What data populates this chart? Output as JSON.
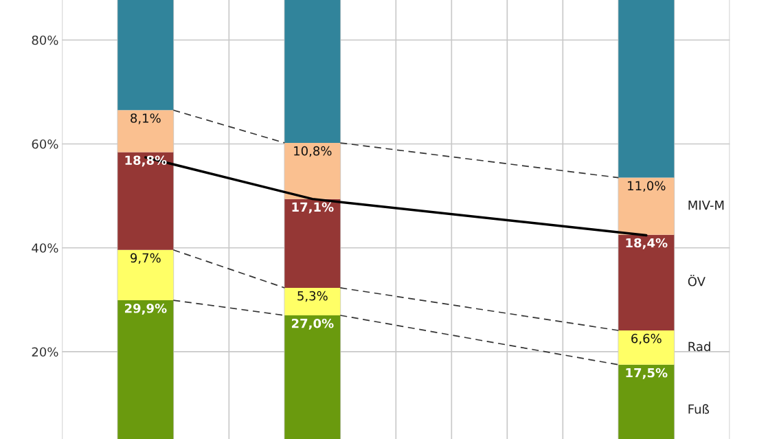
{
  "chart_data": {
    "type": "bar",
    "stacked": true,
    "categories": [
      null,
      null,
      null,
      null
    ],
    "series": [
      {
        "name": "Fuß",
        "color": "#6a9a0e",
        "values": [
          29.9,
          27.0,
          null,
          17.5
        ],
        "value_labels": [
          "29,9%",
          "27,0%",
          null,
          "17,5%"
        ],
        "line_style": "dashed"
      },
      {
        "name": "Rad",
        "color": "#ffff66",
        "values": [
          9.7,
          5.3,
          null,
          6.6
        ],
        "value_labels": [
          "9,7%",
          "5,3%",
          null,
          "6,6%"
        ],
        "line_style": "dashed"
      },
      {
        "name": "ÖV",
        "color": "#953735",
        "values": [
          18.8,
          17.1,
          null,
          18.4
        ],
        "value_labels": [
          "18,8%",
          "17,1%",
          null,
          "18,4%"
        ]
      },
      {
        "name": "MIV-M",
        "color": "#fac090",
        "values": [
          8.1,
          10.8,
          null,
          11.0
        ],
        "value_labels": [
          "8,1%",
          "10,8%",
          null,
          "11,0%"
        ],
        "line_style": "dashed"
      },
      {
        "color": "#31849b",
        "values": [
          21.2,
          27.5,
          null,
          34.2
        ]
      },
      {
        "type": "line",
        "color": "#000000",
        "values": [
          57.4,
          49.4,
          null,
          42.4
        ],
        "line_style": "solid"
      }
    ],
    "ylim": [
      3.2,
      87.7
    ],
    "yticks": [
      {
        "value": 20,
        "label": "20%"
      },
      {
        "value": 40,
        "label": "40%"
      },
      {
        "value": 60,
        "label": "60%"
      },
      {
        "value": 80,
        "label": "80%"
      }
    ],
    "grid": true
  }
}
